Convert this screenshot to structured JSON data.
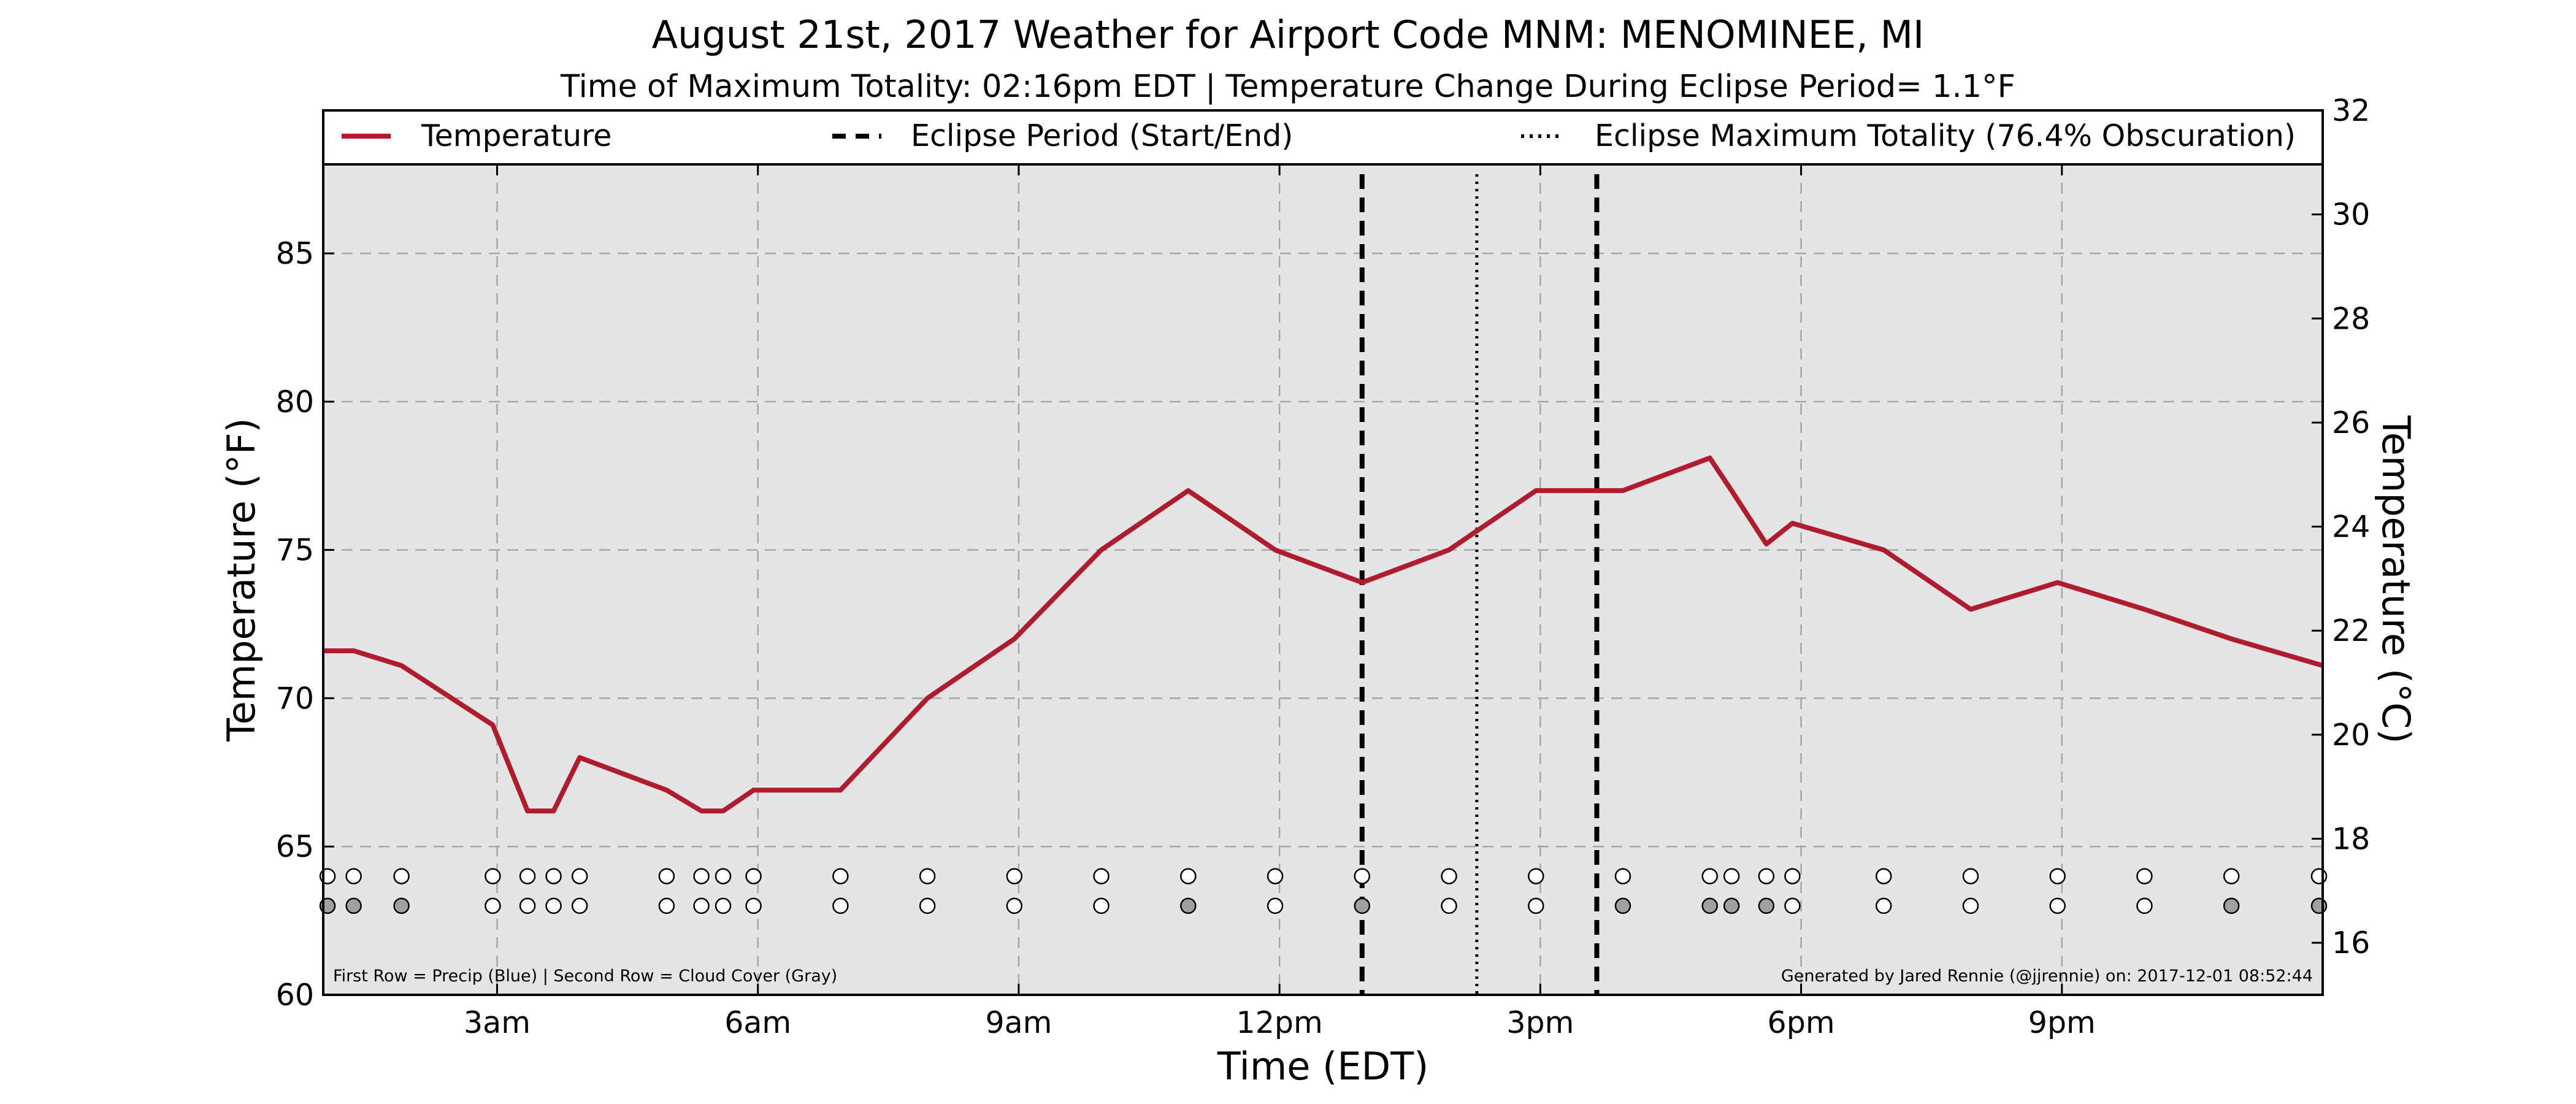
{
  "chart_data": {
    "type": "line",
    "title": "August 21st, 2017 Weather for Airport Code MNM: MENOMINEE, MI",
    "subtitle": "Time of Maximum Totality: 02:16pm EDT | Temperature Change During Eclipse Period= 1.1°F",
    "xlabel": "Time (EDT)",
    "ylabel_left": "Temperature (°F)",
    "ylabel_right": "Temperature (°C)",
    "xlim": [
      1.0,
      24.0
    ],
    "ylim_f": [
      60,
      88
    ],
    "ylim_c": [
      15,
      32
    ],
    "grid": true,
    "legend_placement": "top",
    "x_ticks": [
      {
        "x": 3,
        "label": "3am"
      },
      {
        "x": 6,
        "label": "6am"
      },
      {
        "x": 9,
        "label": "9am"
      },
      {
        "x": 12,
        "label": "12pm"
      },
      {
        "x": 15,
        "label": "3pm"
      },
      {
        "x": 18,
        "label": "6pm"
      },
      {
        "x": 21,
        "label": "9pm"
      }
    ],
    "y_ticks_f": [
      {
        "v": 60,
        "label": "60"
      },
      {
        "v": 65,
        "label": "65"
      },
      {
        "v": 70,
        "label": "70"
      },
      {
        "v": 75,
        "label": "75"
      },
      {
        "v": 80,
        "label": "80"
      },
      {
        "v": 85,
        "label": "85"
      }
    ],
    "y_ticks_c": [
      {
        "v": 16,
        "label": "16"
      },
      {
        "v": 18,
        "label": "18"
      },
      {
        "v": 20,
        "label": "20"
      },
      {
        "v": 22,
        "label": "22"
      },
      {
        "v": 24,
        "label": "24"
      },
      {
        "v": 26,
        "label": "26"
      },
      {
        "v": 28,
        "label": "28"
      },
      {
        "v": 30,
        "label": "30"
      },
      {
        "v": 32,
        "label": "32"
      }
    ],
    "series": [
      {
        "name": "Temperature",
        "color": "#b01c2e",
        "x": [
          1.0,
          1.35,
          1.9,
          2.95,
          3.35,
          3.65,
          3.95,
          4.95,
          5.35,
          5.6,
          5.95,
          6.95,
          7.95,
          8.95,
          9.95,
          10.95,
          11.95,
          12.95,
          13.95,
          14.95,
          15.6,
          15.95,
          16.95,
          17.2,
          17.6,
          17.9,
          18.95,
          19.95,
          20.95,
          21.95,
          22.95,
          24.0
        ],
        "y": [
          71.6,
          71.6,
          71.1,
          69.1,
          66.2,
          66.2,
          68.0,
          66.9,
          66.2,
          66.2,
          66.9,
          66.9,
          70.0,
          72.0,
          75.0,
          77.0,
          75.0,
          73.9,
          75.0,
          77.0,
          77.0,
          77.0,
          78.1,
          77.0,
          75.2,
          75.9,
          75.0,
          73.0,
          73.9,
          73.0,
          72.0,
          71.1
        ]
      }
    ],
    "eclipse_period": {
      "start": 12.95,
      "end": 15.65,
      "label": "Eclipse Period (Start/End)",
      "color": "#000000"
    },
    "eclipse_max": {
      "x": 14.27,
      "label": "Eclipse Maximum Totality (76.4% Obscuration)",
      "color": "#000000"
    },
    "markers": {
      "precip_row_value": 64.0,
      "cloud_row_value": 63.0,
      "x": [
        1.05,
        1.35,
        1.9,
        2.95,
        3.35,
        3.65,
        3.95,
        4.95,
        5.35,
        5.6,
        5.95,
        6.95,
        7.95,
        8.95,
        9.95,
        10.95,
        11.95,
        12.95,
        13.95,
        14.95,
        15.95,
        16.95,
        17.2,
        17.6,
        17.9,
        18.95,
        19.95,
        20.95,
        21.95,
        22.95,
        24.0
      ],
      "precip_colors": [
        "#ffffff",
        "#ffffff",
        "#ffffff",
        "#ffffff",
        "#ffffff",
        "#ffffff",
        "#ffffff",
        "#ffffff",
        "#ffffff",
        "#ffffff",
        "#ffffff",
        "#ffffff",
        "#ffffff",
        "#ffffff",
        "#ffffff",
        "#ffffff",
        "#ffffff",
        "#ffffff",
        "#ffffff",
        "#ffffff",
        "#ffffff",
        "#ffffff",
        "#ffffff",
        "#ffffff",
        "#ffffff",
        "#ffffff",
        "#ffffff",
        "#ffffff",
        "#ffffff",
        "#ffffff",
        "#ffffff"
      ],
      "cloud_colors": [
        "#a0a0a0",
        "#a0a0a0",
        "#a0a0a0",
        "#ffffff",
        "#ffffff",
        "#ffffff",
        "#ffffff",
        "#ffffff",
        "#ffffff",
        "#ffffff",
        "#ffffff",
        "#ffffff",
        "#ffffff",
        "#ffffff",
        "#ffffff",
        "#a0a0a0",
        "#ffffff",
        "#a0a0a0",
        "#ffffff",
        "#ffffff",
        "#a0a0a0",
        "#a0a0a0",
        "#a0a0a0",
        "#a0a0a0",
        "#ffffff",
        "#ffffff",
        "#ffffff",
        "#ffffff",
        "#ffffff",
        "#a0a0a0",
        "#a0a0a0"
      ]
    },
    "footnote_left": "First Row = Precip (Blue) | Second Row = Cloud Cover (Gray)",
    "footnote_right": "Generated by Jared Rennie (@jjrennie) on: 2017-12-01 08:52:44",
    "colors": {
      "plot_bg": "#e5e5e5",
      "grid": "#a6a6a6",
      "line": "#b01c2e"
    }
  }
}
